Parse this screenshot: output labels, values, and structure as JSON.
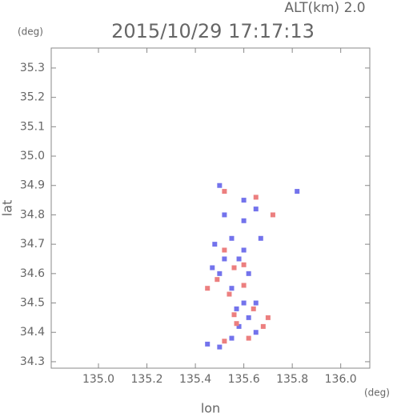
{
  "chart_data": {
    "type": "scatter",
    "title": "2015/10/29 17:17:13",
    "subtitle": "ALT(km) 2.0",
    "y_unit": "(deg)",
    "x_unit": "(deg)",
    "xlabel": "lon",
    "ylabel": "lat",
    "xlim": [
      134.805,
      136.12
    ],
    "ylim": [
      34.278,
      35.368
    ],
    "xticks": [
      {
        "value": 135,
        "label": "135.0"
      },
      135.2,
      135.4,
      135.6,
      135.8,
      {
        "value": 136,
        "label": "136.0"
      }
    ],
    "yticks": [
      34.3,
      34.4,
      34.5,
      34.6,
      34.7,
      34.8,
      34.9,
      {
        "value": 35,
        "label": "35.0"
      },
      35.1,
      35.2,
      35.3
    ],
    "grid": false,
    "series": [
      {
        "color": "#7373ec",
        "x": [
          135.5,
          135.52,
          135.6,
          135.65,
          135.82,
          135.48,
          135.55,
          135.58,
          135.5,
          135.62,
          135.55,
          135.6,
          135.62,
          135.58,
          135.65,
          135.45,
          135.5,
          135.55,
          135.6,
          135.52,
          135.65,
          135.6,
          135.67,
          135.47,
          135.57
        ],
        "y": [
          34.9,
          34.8,
          34.78,
          34.82,
          34.88,
          34.7,
          34.72,
          34.65,
          34.6,
          34.6,
          34.55,
          34.5,
          34.45,
          34.42,
          34.4,
          34.36,
          34.35,
          34.38,
          34.68,
          34.65,
          34.5,
          34.85,
          34.72,
          34.62,
          34.48
        ]
      },
      {
        "color": "#ec7f7f",
        "x": [
          135.52,
          135.65,
          135.72,
          135.52,
          135.56,
          135.49,
          135.54,
          135.6,
          135.64,
          135.56,
          135.57,
          135.62,
          135.52,
          135.7,
          135.45,
          135.6,
          135.68
        ],
        "y": [
          34.88,
          34.86,
          34.8,
          34.68,
          34.62,
          34.58,
          34.53,
          34.56,
          34.48,
          34.46,
          34.43,
          34.38,
          34.37,
          34.45,
          34.55,
          34.63,
          34.42
        ]
      }
    ]
  }
}
